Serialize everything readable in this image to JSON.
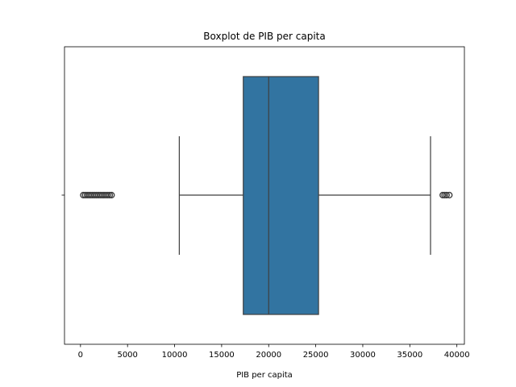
{
  "chart_data": {
    "type": "boxplot",
    "title": "Boxplot de PIB per capita",
    "xlabel": "PIB per capita",
    "ylabel": "",
    "xlim": [
      -1700,
      40800
    ],
    "xticks": [
      0,
      5000,
      10000,
      15000,
      20000,
      25000,
      30000,
      35000,
      40000
    ],
    "xtick_labels": [
      "0",
      "5000",
      "10000",
      "15000",
      "20000",
      "25000",
      "30000",
      "35000",
      "40000"
    ],
    "grid": false,
    "orientation": "horizontal",
    "box": {
      "whisker_low": 10500,
      "q1": 17300,
      "median": 20000,
      "q3": 25300,
      "whisker_high": 37200
    },
    "outliers_low": [
      300,
      500,
      700,
      900,
      1100,
      1300,
      1500,
      1700,
      1900,
      2100,
      2300,
      2500,
      2700,
      2900,
      3100,
      3300
    ],
    "outliers_high": [
      38500,
      38700,
      38900,
      39200
    ],
    "colors": {
      "box_fill": "#3274a1",
      "line": "#3f3f3f",
      "axis": "#000000"
    }
  }
}
